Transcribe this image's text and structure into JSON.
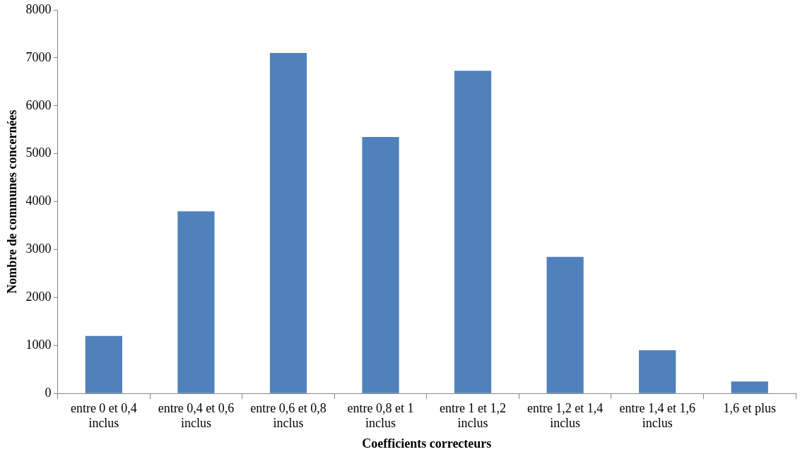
{
  "chart_data": {
    "type": "bar",
    "xlabel": "Coefficients correcteurs",
    "ylabel": "Nombre de communes concernées",
    "categories": [
      "entre 0 et 0,4 inclus",
      "entre 0,4 et 0,6 inclus",
      "entre 0,6 et 0,8 inclus",
      "entre 0,8 et 1 inclus",
      "entre 1 et 1,2 inclus",
      "entre 1,2 et 1,4 inclus",
      "entre 1,4 et 1,6 inclus",
      "1,6 et plus"
    ],
    "values": [
      1200,
      3800,
      7100,
      5350,
      6730,
      2850,
      900,
      250
    ],
    "color": "#4f81bd",
    "ylim": [
      0,
      8000
    ],
    "yticks": [
      0,
      1000,
      2000,
      3000,
      4000,
      5000,
      6000,
      7000,
      8000
    ],
    "grid": false,
    "legend": false
  }
}
